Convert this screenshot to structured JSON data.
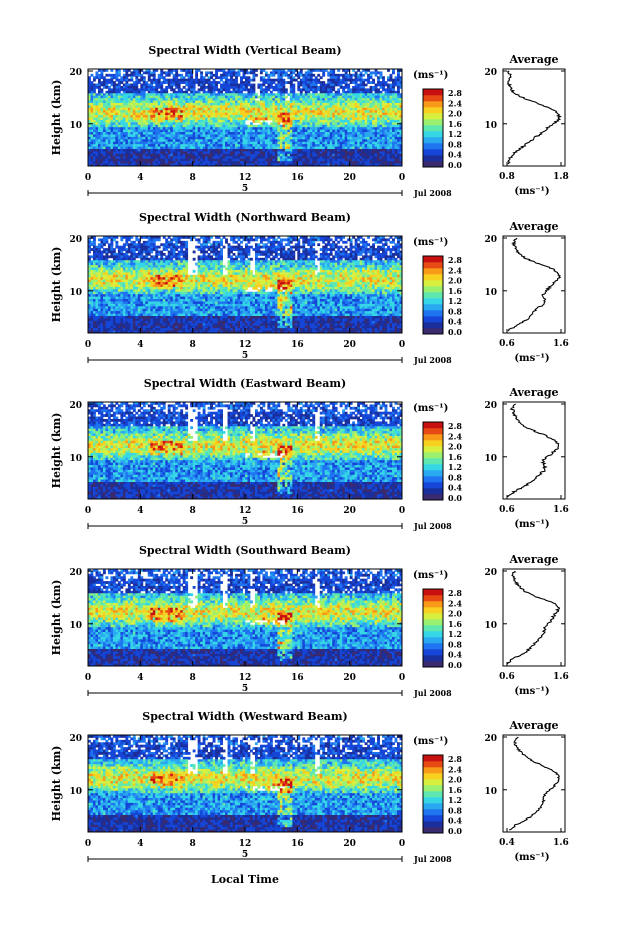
{
  "chart_data": [
    {
      "type": "heatmap",
      "title": "Spectral Width (Vertical Beam)",
      "ylabel": "Height (km)",
      "xticks": [
        "0",
        "4",
        "8",
        "12",
        "16",
        "20",
        "0"
      ],
      "yticks": [
        "20",
        "10"
      ],
      "date_label": "Jul 2008",
      "date_tick_label": "5",
      "colorbar_unit": "(ms⁻¹)",
      "colorbar_ticks": [
        "2.8",
        "2.4",
        "2.0",
        "1.6",
        "1.2",
        "0.8",
        "0.4",
        "0.0"
      ],
      "clim": [
        0.0,
        2.8
      ],
      "xlim": [
        0,
        24
      ],
      "ylim": [
        2,
        20
      ],
      "profile": {
        "title": "Average",
        "xlabel": "(ms⁻¹)",
        "xticks": [
          "0.8",
          "1.8"
        ],
        "yticks": [
          "20",
          "10"
        ],
        "xlim": [
          0.8,
          1.8
        ],
        "heights": [
          2,
          3,
          4,
          5,
          6,
          7,
          8,
          9,
          10,
          11,
          12,
          13,
          14,
          15,
          16,
          17,
          18,
          19,
          20
        ],
        "values": [
          0.82,
          0.85,
          0.92,
          1.05,
          1.18,
          1.3,
          1.45,
          1.55,
          1.7,
          1.78,
          1.72,
          1.55,
          1.3,
          1.05,
          0.9,
          0.85,
          0.82,
          0.86,
          0.84
        ]
      }
    },
    {
      "type": "heatmap",
      "title": "Spectral Width (Northward Beam)",
      "ylabel": "Height (km)",
      "xticks": [
        "0",
        "4",
        "8",
        "12",
        "16",
        "20",
        "0"
      ],
      "yticks": [
        "20",
        "10"
      ],
      "date_label": "Jul 2008",
      "date_tick_label": "5",
      "colorbar_unit": "(ms⁻¹)",
      "colorbar_ticks": [
        "2.8",
        "2.4",
        "2.0",
        "1.6",
        "1.2",
        "0.8",
        "0.4",
        "0.0"
      ],
      "clim": [
        0.0,
        2.8
      ],
      "xlim": [
        0,
        24
      ],
      "ylim": [
        2,
        20
      ],
      "profile": {
        "title": "Average",
        "xlabel": "(ms⁻¹)",
        "xticks": [
          "0.6",
          "1.6"
        ],
        "yticks": [
          "20",
          "10"
        ],
        "xlim": [
          0.6,
          1.6
        ],
        "heights": [
          2,
          3,
          4,
          5,
          6,
          7,
          8,
          9,
          10,
          11,
          12,
          13,
          14,
          15,
          16,
          17,
          18,
          19,
          20
        ],
        "values": [
          0.62,
          0.75,
          0.95,
          1.05,
          1.12,
          1.25,
          1.3,
          1.25,
          1.35,
          1.45,
          1.55,
          1.58,
          1.45,
          1.2,
          0.95,
          0.82,
          0.75,
          0.72,
          0.78
        ]
      }
    },
    {
      "type": "heatmap",
      "title": "Spectral Width (Eastward Beam)",
      "ylabel": "Height (km)",
      "xticks": [
        "0",
        "4",
        "8",
        "12",
        "16",
        "20",
        "0"
      ],
      "yticks": [
        "20",
        "10"
      ],
      "date_label": "Jul 2008",
      "date_tick_label": "5",
      "colorbar_unit": "(ms⁻¹)",
      "colorbar_ticks": [
        "2.8",
        "2.4",
        "2.0",
        "1.6",
        "1.2",
        "0.8",
        "0.4",
        "0.0"
      ],
      "clim": [
        0.0,
        2.8
      ],
      "xlim": [
        0,
        24
      ],
      "ylim": [
        2,
        20
      ],
      "profile": {
        "title": "Average",
        "xlabel": "(ms⁻¹)",
        "xticks": [
          "0.6",
          "1.6"
        ],
        "yticks": [
          "20",
          "10"
        ],
        "xlim": [
          0.6,
          1.6
        ],
        "heights": [
          2,
          3,
          4,
          5,
          6,
          7,
          8,
          9,
          10,
          11,
          12,
          13,
          14,
          15,
          16,
          17,
          18,
          19,
          20
        ],
        "values": [
          0.62,
          0.72,
          0.92,
          1.05,
          1.15,
          1.28,
          1.3,
          1.25,
          1.38,
          1.5,
          1.56,
          1.48,
          1.3,
          1.05,
          0.88,
          0.8,
          0.74,
          0.7,
          0.76
        ]
      }
    },
    {
      "type": "heatmap",
      "title": "Spectral Width (Southward Beam)",
      "ylabel": "Height (km)",
      "xticks": [
        "0",
        "4",
        "8",
        "12",
        "16",
        "20",
        "0"
      ],
      "yticks": [
        "20",
        "10"
      ],
      "date_label": "Jul 2008",
      "date_tick_label": "5",
      "colorbar_unit": "(ms⁻¹)",
      "colorbar_ticks": [
        "2.8",
        "2.4",
        "2.0",
        "1.6",
        "1.2",
        "0.8",
        "0.4",
        "0.0"
      ],
      "clim": [
        0.0,
        2.8
      ],
      "xlim": [
        0,
        24
      ],
      "ylim": [
        2,
        20
      ],
      "profile": {
        "title": "Average",
        "xlabel": "(ms⁻¹)",
        "xticks": [
          "0.6",
          "1.6"
        ],
        "yticks": [
          "20",
          "10"
        ],
        "xlim": [
          0.6,
          1.6
        ],
        "heights": [
          2,
          3,
          4,
          5,
          6,
          7,
          8,
          9,
          10,
          11,
          12,
          13,
          14,
          15,
          16,
          17,
          18,
          19,
          20
        ],
        "values": [
          0.62,
          0.7,
          0.9,
          1.02,
          1.12,
          1.22,
          1.28,
          1.3,
          1.38,
          1.45,
          1.52,
          1.56,
          1.42,
          1.15,
          0.92,
          0.82,
          0.75,
          0.7,
          0.74
        ]
      }
    },
    {
      "type": "heatmap",
      "title": "Spectral Width (Westward Beam)",
      "ylabel": "Height (km)",
      "xlabel": "Local Time",
      "xticks": [
        "0",
        "4",
        "8",
        "12",
        "16",
        "20",
        "0"
      ],
      "yticks": [
        "20",
        "10"
      ],
      "date_label": "Jul 2008",
      "date_tick_label": "5",
      "colorbar_unit": "(ms⁻¹)",
      "colorbar_ticks": [
        "2.8",
        "2.4",
        "2.0",
        "1.6",
        "1.2",
        "0.8",
        "0.4",
        "0.0"
      ],
      "clim": [
        0.0,
        2.8
      ],
      "xlim": [
        0,
        24
      ],
      "ylim": [
        2,
        20
      ],
      "profile": {
        "title": "Average",
        "xlabel": "(ms⁻¹)",
        "xticks": [
          "0.4",
          "1.6"
        ],
        "yticks": [
          "20",
          "10"
        ],
        "xlim": [
          0.4,
          1.6
        ],
        "heights": [
          2,
          3,
          4,
          5,
          6,
          7,
          8,
          9,
          10,
          11,
          12,
          13,
          14,
          15,
          16,
          17,
          18,
          19,
          20
        ],
        "values": [
          0.45,
          0.6,
          0.82,
          0.98,
          1.1,
          1.2,
          1.22,
          1.25,
          1.38,
          1.5,
          1.56,
          1.5,
          1.3,
          1.05,
          0.85,
          0.72,
          0.62,
          0.56,
          0.65
        ]
      }
    }
  ],
  "colors": {
    "colormap": [
      "#3a2a6e",
      "#1a2f9c",
      "#1546d8",
      "#1f74f0",
      "#2aa8f0",
      "#35d6e6",
      "#5ee8b0",
      "#9cf070",
      "#d8ef40",
      "#f7d020",
      "#f89a18",
      "#e84a14",
      "#c81010"
    ],
    "colorbar_bottom": "#3a2a6e"
  }
}
